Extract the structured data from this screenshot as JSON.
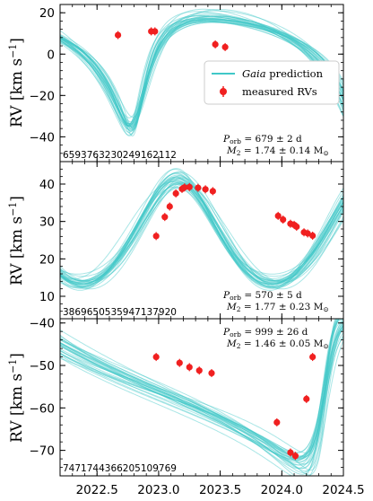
{
  "colors": {
    "model": "#40c8c8",
    "measured": "#f02020",
    "axis": "#000000"
  },
  "x_axis": {
    "range": [
      2022.2,
      2024.5
    ],
    "ticks": [
      2022.5,
      2023.0,
      2023.5,
      2024.0,
      2024.5
    ],
    "tick_labels": [
      "2022.5",
      "2023.0",
      "2023.5",
      "2024.0",
      "2024.5"
    ]
  },
  "legend": {
    "placement": "right, upper panel",
    "model_prefix": "Gaia",
    "model_suffix": " prediction",
    "measured_label": "measured RVs"
  },
  "chart_data": [
    {
      "type": "scatter",
      "source_id": "6593763230249162112",
      "xlabel": "",
      "ylabel_main": "RV ",
      "ylabel_unit": "[km s",
      "ylabel_exp": "−1",
      "ylim": [
        -52,
        24
      ],
      "yticks": [
        20,
        0,
        -20,
        -40
      ],
      "ytick_labels": [
        "20",
        "0",
        "−20",
        "−40"
      ],
      "period": {
        "prefix": "P",
        "sub": "orb",
        "value": " = 679 ± 2 d",
        "num": 679
      },
      "mass": {
        "prefix": "M",
        "sub": "2",
        "value": " = 1.74 ± 0.14 M",
        "sun": "⊙"
      },
      "model": {
        "K": 27,
        "gamma": 3,
        "ecc": 0.5,
        "omega": 3.6,
        "tperi": 2022.81,
        "variants": 30
      },
      "series": [
        {
          "name": "measured RVs",
          "x": [
            2022.67,
            2022.94,
            2022.97,
            2023.46,
            2023.54
          ],
          "y": [
            9.2,
            11.0,
            11.0,
            4.7,
            3.4
          ]
        }
      ]
    },
    {
      "type": "scatter",
      "source_id": "3869650535947137920",
      "xlabel": "",
      "ylabel_main": "RV ",
      "ylabel_unit": "[km s",
      "ylabel_exp": "−1",
      "ylim": [
        4,
        46
      ],
      "yticks": [
        40,
        30,
        20,
        10
      ],
      "ytick_labels": [
        "40",
        "30",
        "20",
        "10"
      ],
      "period": {
        "prefix": "P",
        "sub": "orb",
        "value": " = 570 ± 5 d",
        "num": 570
      },
      "mass": {
        "prefix": "M",
        "sub": "2",
        "value": " = 1.77 ± 0.23 M",
        "sun": "⊙"
      },
      "model": {
        "K": 14,
        "gamma": 26,
        "ecc": 0.1,
        "omega": 0.0,
        "tperi": 2023.15,
        "variants": 30
      },
      "series": [
        {
          "name": "measured RVs",
          "x": [
            2022.98,
            2023.05,
            2023.09,
            2023.14,
            2023.19,
            2023.21,
            2023.25,
            2023.32,
            2023.38,
            2023.44,
            2023.97,
            2024.01,
            2024.07,
            2024.1,
            2024.12,
            2024.18,
            2024.21,
            2024.25
          ],
          "y": [
            26.1,
            31.2,
            34.0,
            37.5,
            38.7,
            39.1,
            39.2,
            39.0,
            38.6,
            38.1,
            31.5,
            30.5,
            29.4,
            29.1,
            28.6,
            27.1,
            26.8,
            26.2
          ]
        }
      ]
    },
    {
      "type": "scatter",
      "source_id": "7471744366205109769",
      "xlabel": "",
      "ylabel_main": "RV ",
      "ylabel_unit": "[km s",
      "ylabel_exp": "−1",
      "ylim": [
        -76,
        -39
      ],
      "yticks": [
        -40,
        -50,
        -60,
        -70
      ],
      "ytick_labels": [
        "−40",
        "−50",
        "−60",
        "−70"
      ],
      "period": {
        "prefix": "P",
        "sub": "orb",
        "value": " = 999 ± 26 d",
        "num": 999
      },
      "mass": {
        "prefix": "M",
        "sub": "2",
        "value": " = 1.46 ± 0.05 M",
        "sun": "⊙"
      },
      "model": {
        "K": 17,
        "gamma": -56,
        "ecc": 0.6,
        "omega": 4.7,
        "tperi": 2024.35,
        "variants": 30
      },
      "series": [
        {
          "name": "measured RVs",
          "x": [
            2022.98,
            2023.17,
            2023.25,
            2023.33,
            2023.43,
            2023.96,
            2024.07,
            2024.11,
            2024.2,
            2024.25
          ],
          "y": [
            -48.0,
            -49.4,
            -50.4,
            -51.2,
            -51.8,
            -63.4,
            -70.5,
            -71.3,
            -57.9,
            -48.0
          ]
        }
      ]
    }
  ]
}
